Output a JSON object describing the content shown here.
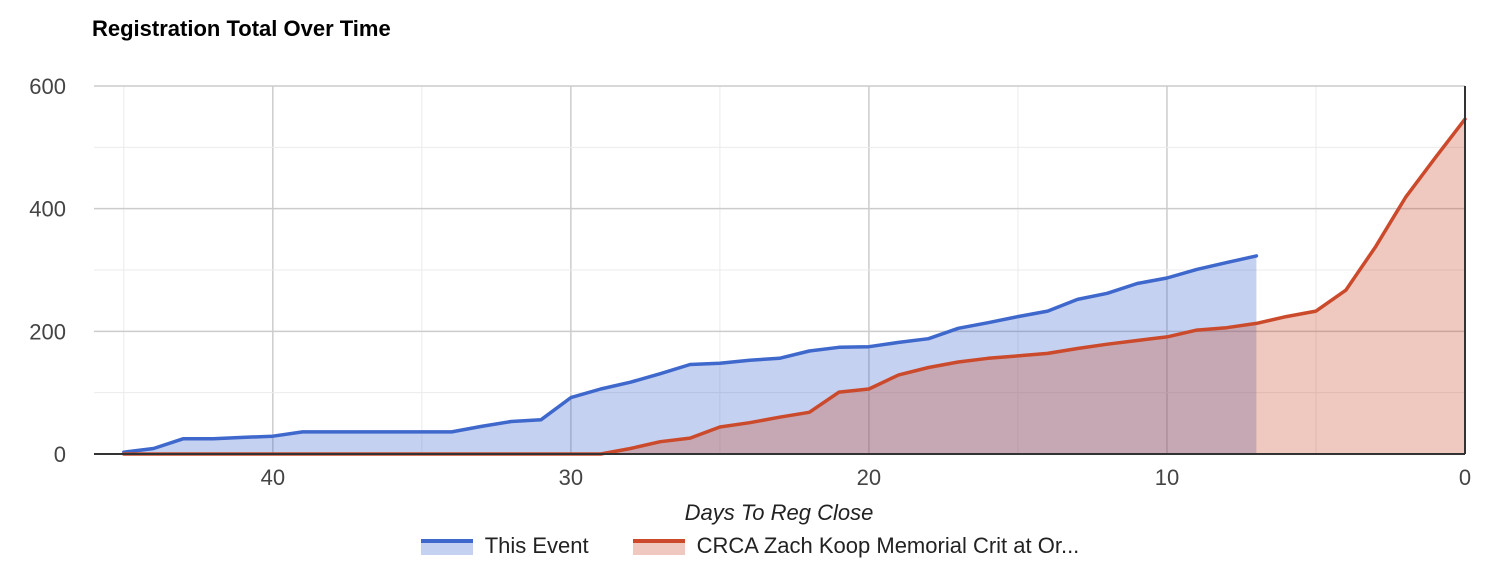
{
  "chart_data": {
    "type": "area",
    "title": "Registration Total Over Time",
    "xlabel": "Days To Reg Close",
    "ylabel": "",
    "xlim": [
      46,
      0
    ],
    "ylim": [
      0,
      600
    ],
    "x_ticks": [
      "40",
      "30",
      "20",
      "10",
      "0"
    ],
    "y_ticks": [
      "0",
      "200",
      "400",
      "600"
    ],
    "grid": true,
    "legend_position": "bottom",
    "series": [
      {
        "name": "This Event",
        "color": "#3f68cc",
        "points": [
          [
            45,
            3
          ],
          [
            44,
            9
          ],
          [
            43,
            25
          ],
          [
            42,
            25
          ],
          [
            41,
            27
          ],
          [
            40,
            29
          ],
          [
            39,
            36
          ],
          [
            38,
            36
          ],
          [
            37,
            36
          ],
          [
            36,
            36
          ],
          [
            35,
            36
          ],
          [
            34,
            36
          ],
          [
            33,
            45
          ],
          [
            32,
            53
          ],
          [
            31,
            56
          ],
          [
            30,
            92
          ],
          [
            29,
            106
          ],
          [
            28,
            117
          ],
          [
            27,
            131
          ],
          [
            26,
            146
          ],
          [
            25,
            148
          ],
          [
            24,
            153
          ],
          [
            23,
            156
          ],
          [
            22,
            168
          ],
          [
            21,
            174
          ],
          [
            20,
            175
          ],
          [
            19,
            182
          ],
          [
            18,
            188
          ],
          [
            17,
            205
          ],
          [
            16,
            214
          ],
          [
            15,
            224
          ],
          [
            14,
            233
          ],
          [
            13,
            252
          ],
          [
            12,
            262
          ],
          [
            11,
            278
          ],
          [
            10,
            287
          ],
          [
            9,
            301
          ],
          [
            8,
            312
          ],
          [
            7,
            323
          ]
        ]
      },
      {
        "name": "CRCA Zach Koop Memorial Crit at Or...",
        "color": "#cb4a2c",
        "points": [
          [
            45,
            0
          ],
          [
            44,
            0
          ],
          [
            43,
            0
          ],
          [
            42,
            0
          ],
          [
            41,
            0
          ],
          [
            40,
            0
          ],
          [
            39,
            0
          ],
          [
            38,
            0
          ],
          [
            37,
            0
          ],
          [
            36,
            0
          ],
          [
            35,
            0
          ],
          [
            34,
            0
          ],
          [
            33,
            0
          ],
          [
            32,
            0
          ],
          [
            31,
            0
          ],
          [
            30,
            0
          ],
          [
            29,
            0
          ],
          [
            28,
            9
          ],
          [
            27,
            20
          ],
          [
            26,
            26
          ],
          [
            25,
            44
          ],
          [
            24,
            51
          ],
          [
            23,
            60
          ],
          [
            22,
            68
          ],
          [
            21,
            101
          ],
          [
            20,
            106
          ],
          [
            19,
            129
          ],
          [
            18,
            141
          ],
          [
            17,
            150
          ],
          [
            16,
            156
          ],
          [
            15,
            160
          ],
          [
            14,
            164
          ],
          [
            13,
            172
          ],
          [
            12,
            179
          ],
          [
            11,
            185
          ],
          [
            10,
            191
          ],
          [
            9,
            202
          ],
          [
            8,
            206
          ],
          [
            7,
            213
          ],
          [
            6,
            224
          ],
          [
            5,
            233
          ],
          [
            4,
            267
          ],
          [
            3,
            338
          ],
          [
            2,
            418
          ],
          [
            1,
            483
          ],
          [
            0,
            546
          ]
        ]
      }
    ]
  }
}
